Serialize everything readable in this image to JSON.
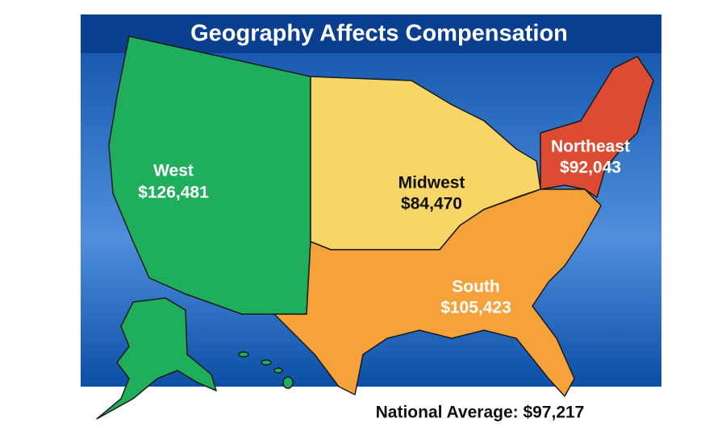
{
  "header": {
    "title": "Geography Affects Compensation"
  },
  "regions": [
    {
      "name": "West",
      "value": "$126,481"
    },
    {
      "name": "Midwest",
      "value": "$84,470"
    },
    {
      "name": "Northeast",
      "value": "$92,043"
    },
    {
      "name": "South",
      "value": "$105,423"
    }
  ],
  "footer": {
    "national_average": "National Average: $97,217"
  }
}
